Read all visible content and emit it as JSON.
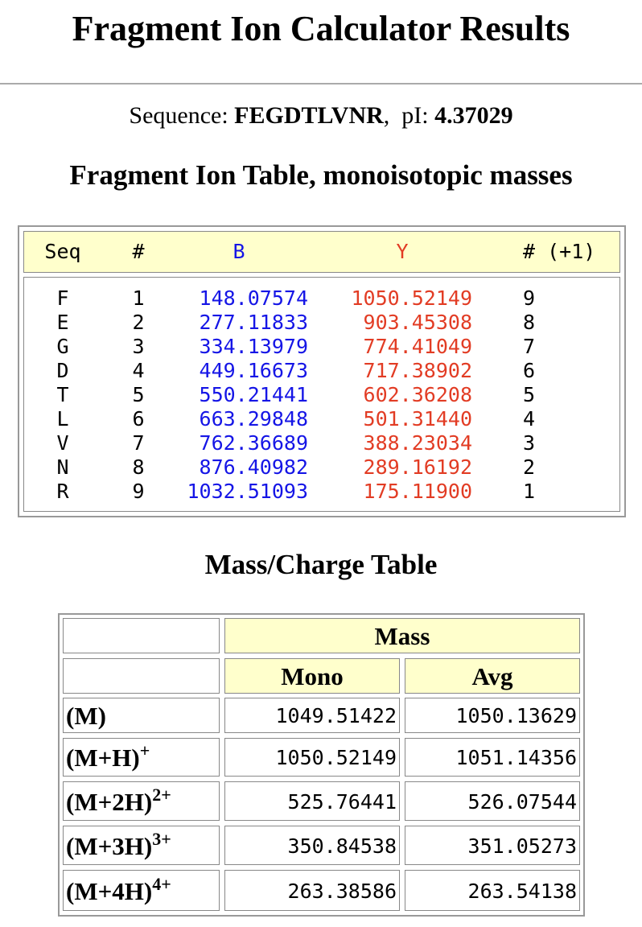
{
  "header": {
    "title": "Fragment Ion Calculator Results"
  },
  "summary": {
    "sequence_label": "Sequence:",
    "sequence": "FEGDTLVNR",
    "separator": ",",
    "pi_label": "pI:",
    "pi": "4.37029"
  },
  "fragment_table": {
    "title": "Fragment Ion Table, monoisotopic masses",
    "columns": [
      "Seq",
      "#",
      "B",
      "Y",
      "# (+1)"
    ],
    "rows": [
      [
        "F",
        "1",
        "148.07574",
        "1050.52149",
        "9"
      ],
      [
        "E",
        "2",
        "277.11833",
        "903.45308",
        "8"
      ],
      [
        "G",
        "3",
        "334.13979",
        "774.41049",
        "7"
      ],
      [
        "D",
        "4",
        "449.16673",
        "717.38902",
        "6"
      ],
      [
        "T",
        "5",
        "550.21441",
        "602.36208",
        "5"
      ],
      [
        "L",
        "6",
        "663.29848",
        "501.31440",
        "4"
      ],
      [
        "V",
        "7",
        "762.36689",
        "388.23034",
        "3"
      ],
      [
        "N",
        "8",
        "876.40982",
        "289.16192",
        "2"
      ],
      [
        "R",
        "9",
        "1032.51093",
        "175.11900",
        "1"
      ]
    ]
  },
  "mass_table": {
    "title": "Mass/Charge Table",
    "group_header": "Mass",
    "columns": [
      "Mono",
      "Avg"
    ],
    "rows": [
      {
        "label": "(M)",
        "mono": "1049.51422",
        "avg": "1050.13629"
      },
      {
        "label": "(M+H)",
        "sup": "+",
        "mono": "1050.52149",
        "avg": "1051.14356"
      },
      {
        "label": "(M+2H)",
        "sup": "2+",
        "mono": "525.76441",
        "avg": "526.07544"
      },
      {
        "label": "(M+3H)",
        "sup": "3+",
        "mono": "350.84538",
        "avg": "351.05273"
      },
      {
        "label": "(M+4H)",
        "sup": "4+",
        "mono": "263.38586",
        "avg": "263.54138"
      }
    ]
  }
}
